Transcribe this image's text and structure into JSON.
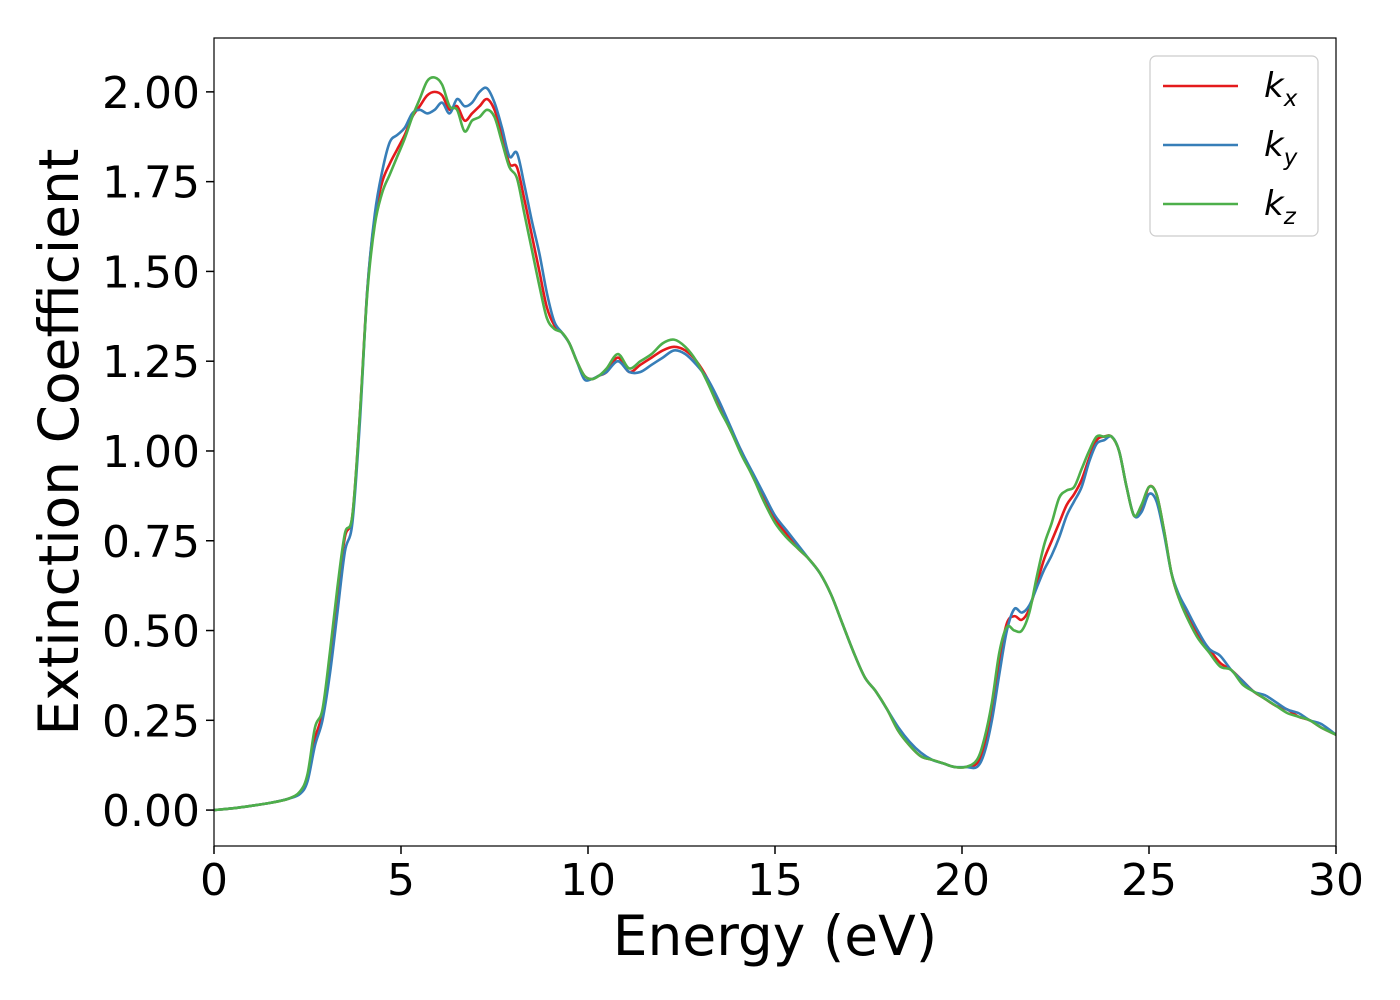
{
  "chart_data": {
    "type": "line",
    "xlabel": "Energy (eV)",
    "ylabel": "Extinction Coefficient",
    "xlim": [
      0,
      30
    ],
    "ylim": [
      -0.1,
      2.15
    ],
    "xticks": [
      0,
      5,
      10,
      15,
      20,
      25,
      30
    ],
    "xtick_labels": [
      "0",
      "5",
      "10",
      "15",
      "20",
      "25",
      "30"
    ],
    "yticks": [
      0.0,
      0.25,
      0.5,
      0.75,
      1.0,
      1.25,
      1.5,
      1.75,
      2.0
    ],
    "ytick_labels": [
      "0.00",
      "0.25",
      "0.50",
      "0.75",
      "1.00",
      "1.25",
      "1.50",
      "1.75",
      "2.00"
    ],
    "grid": false,
    "legend_position": "top-right",
    "series": [
      {
        "name": "k",
        "subscript": "x",
        "color": "#e41a1c",
        "x": [
          0,
          0.5,
          1,
          1.5,
          2,
          2.3,
          2.5,
          2.7,
          2.9,
          3.1,
          3.3,
          3.5,
          3.7,
          3.9,
          4.1,
          4.3,
          4.5,
          4.7,
          4.9,
          5.1,
          5.3,
          5.5,
          5.7,
          5.9,
          6.1,
          6.3,
          6.5,
          6.7,
          6.9,
          7.1,
          7.3,
          7.5,
          7.7,
          7.9,
          8.1,
          8.3,
          8.5,
          8.7,
          8.9,
          9.1,
          9.3,
          9.5,
          9.7,
          9.9,
          10.1,
          10.3,
          10.5,
          10.8,
          11.1,
          11.4,
          11.7,
          12.0,
          12.3,
          12.6,
          12.9,
          13.2,
          13.5,
          13.8,
          14.1,
          14.4,
          14.7,
          15.0,
          15.3,
          15.6,
          15.9,
          16.2,
          16.5,
          16.8,
          17.1,
          17.4,
          17.7,
          18.0,
          18.3,
          18.6,
          18.9,
          19.2,
          19.5,
          19.8,
          20.1,
          20.4,
          20.6,
          20.8,
          21.0,
          21.2,
          21.4,
          21.6,
          21.8,
          22.0,
          22.2,
          22.4,
          22.6,
          22.8,
          23.0,
          23.2,
          23.4,
          23.6,
          23.8,
          24.0,
          24.2,
          24.4,
          24.6,
          24.8,
          25.0,
          25.2,
          25.4,
          25.6,
          25.8,
          26.0,
          26.3,
          26.6,
          26.9,
          27.2,
          27.5,
          27.8,
          28.1,
          28.4,
          28.7,
          29.0,
          29.3,
          29.6,
          30.0
        ],
        "values": [
          0.0,
          0.005,
          0.012,
          0.02,
          0.032,
          0.05,
          0.09,
          0.2,
          0.27,
          0.42,
          0.6,
          0.76,
          0.82,
          1.1,
          1.45,
          1.65,
          1.75,
          1.8,
          1.84,
          1.88,
          1.93,
          1.96,
          1.99,
          2.0,
          1.99,
          1.95,
          1.96,
          1.92,
          1.94,
          1.96,
          1.98,
          1.95,
          1.88,
          1.8,
          1.79,
          1.7,
          1.6,
          1.5,
          1.4,
          1.35,
          1.33,
          1.3,
          1.25,
          1.21,
          1.2,
          1.21,
          1.22,
          1.26,
          1.22,
          1.24,
          1.26,
          1.28,
          1.29,
          1.28,
          1.25,
          1.2,
          1.13,
          1.06,
          1.0,
          0.93,
          0.87,
          0.81,
          0.77,
          0.73,
          0.7,
          0.66,
          0.6,
          0.52,
          0.44,
          0.37,
          0.33,
          0.28,
          0.22,
          0.18,
          0.15,
          0.14,
          0.13,
          0.12,
          0.12,
          0.13,
          0.18,
          0.28,
          0.42,
          0.52,
          0.54,
          0.53,
          0.56,
          0.63,
          0.7,
          0.75,
          0.8,
          0.85,
          0.88,
          0.92,
          0.98,
          1.03,
          1.04,
          1.04,
          1.0,
          0.9,
          0.82,
          0.84,
          0.9,
          0.88,
          0.78,
          0.66,
          0.59,
          0.55,
          0.49,
          0.45,
          0.41,
          0.39,
          0.36,
          0.33,
          0.31,
          0.29,
          0.28,
          0.26,
          0.25,
          0.23,
          0.21
        ]
      },
      {
        "name": "k",
        "subscript": "y",
        "color": "#377eb8",
        "x": [
          0,
          0.5,
          1,
          1.5,
          2,
          2.3,
          2.5,
          2.7,
          2.9,
          3.1,
          3.3,
          3.5,
          3.7,
          3.9,
          4.1,
          4.3,
          4.5,
          4.7,
          4.9,
          5.1,
          5.3,
          5.5,
          5.7,
          5.9,
          6.1,
          6.3,
          6.5,
          6.7,
          6.9,
          7.1,
          7.3,
          7.5,
          7.7,
          7.9,
          8.1,
          8.3,
          8.5,
          8.7,
          8.9,
          9.1,
          9.3,
          9.5,
          9.7,
          9.9,
          10.1,
          10.3,
          10.5,
          10.8,
          11.1,
          11.4,
          11.7,
          12.0,
          12.3,
          12.6,
          12.9,
          13.2,
          13.5,
          13.8,
          14.1,
          14.4,
          14.7,
          15.0,
          15.3,
          15.6,
          15.9,
          16.2,
          16.5,
          16.8,
          17.1,
          17.4,
          17.7,
          18.0,
          18.3,
          18.6,
          18.9,
          19.2,
          19.5,
          19.8,
          20.1,
          20.4,
          20.6,
          20.8,
          21.0,
          21.2,
          21.4,
          21.6,
          21.8,
          22.0,
          22.2,
          22.4,
          22.6,
          22.8,
          23.0,
          23.2,
          23.4,
          23.6,
          23.8,
          24.0,
          24.2,
          24.4,
          24.6,
          24.8,
          25.0,
          25.2,
          25.4,
          25.6,
          25.8,
          26.0,
          26.3,
          26.6,
          26.9,
          27.2,
          27.5,
          27.8,
          28.1,
          28.4,
          28.7,
          29.0,
          29.3,
          29.6,
          30.0
        ],
        "values": [
          0.0,
          0.005,
          0.012,
          0.02,
          0.032,
          0.045,
          0.08,
          0.18,
          0.25,
          0.38,
          0.55,
          0.72,
          0.8,
          1.08,
          1.45,
          1.66,
          1.78,
          1.86,
          1.88,
          1.9,
          1.94,
          1.95,
          1.94,
          1.95,
          1.97,
          1.94,
          1.98,
          1.96,
          1.97,
          2.0,
          2.01,
          1.97,
          1.9,
          1.82,
          1.83,
          1.74,
          1.64,
          1.55,
          1.44,
          1.36,
          1.33,
          1.3,
          1.25,
          1.2,
          1.2,
          1.21,
          1.22,
          1.25,
          1.22,
          1.22,
          1.24,
          1.26,
          1.28,
          1.27,
          1.24,
          1.2,
          1.14,
          1.07,
          1.0,
          0.94,
          0.88,
          0.82,
          0.78,
          0.74,
          0.7,
          0.66,
          0.6,
          0.52,
          0.44,
          0.37,
          0.33,
          0.28,
          0.23,
          0.19,
          0.16,
          0.14,
          0.13,
          0.12,
          0.12,
          0.12,
          0.16,
          0.25,
          0.38,
          0.5,
          0.56,
          0.55,
          0.57,
          0.62,
          0.67,
          0.71,
          0.76,
          0.82,
          0.86,
          0.9,
          0.97,
          1.02,
          1.03,
          1.04,
          1.0,
          0.9,
          0.82,
          0.83,
          0.88,
          0.86,
          0.77,
          0.66,
          0.6,
          0.56,
          0.5,
          0.45,
          0.43,
          0.39,
          0.36,
          0.33,
          0.32,
          0.3,
          0.28,
          0.27,
          0.25,
          0.24,
          0.21
        ]
      },
      {
        "name": "k",
        "subscript": "z",
        "color": "#4daf4a",
        "x": [
          0,
          0.5,
          1,
          1.5,
          2,
          2.3,
          2.5,
          2.7,
          2.9,
          3.1,
          3.3,
          3.5,
          3.7,
          3.9,
          4.1,
          4.3,
          4.5,
          4.7,
          4.9,
          5.1,
          5.3,
          5.5,
          5.7,
          5.9,
          6.1,
          6.3,
          6.5,
          6.7,
          6.9,
          7.1,
          7.3,
          7.5,
          7.7,
          7.9,
          8.1,
          8.3,
          8.5,
          8.7,
          8.9,
          9.1,
          9.3,
          9.5,
          9.7,
          9.9,
          10.1,
          10.3,
          10.5,
          10.8,
          11.1,
          11.4,
          11.7,
          12.0,
          12.3,
          12.6,
          12.9,
          13.2,
          13.5,
          13.8,
          14.1,
          14.4,
          14.7,
          15.0,
          15.3,
          15.6,
          15.9,
          16.2,
          16.5,
          16.8,
          17.1,
          17.4,
          17.7,
          18.0,
          18.3,
          18.6,
          18.9,
          19.2,
          19.5,
          19.8,
          20.1,
          20.4,
          20.6,
          20.8,
          21.0,
          21.2,
          21.4,
          21.6,
          21.8,
          22.0,
          22.2,
          22.4,
          22.6,
          22.8,
          23.0,
          23.2,
          23.4,
          23.6,
          23.8,
          24.0,
          24.2,
          24.4,
          24.6,
          24.8,
          25.0,
          25.2,
          25.4,
          25.6,
          25.8,
          26.0,
          26.3,
          26.6,
          26.9,
          27.2,
          27.5,
          27.8,
          28.1,
          28.4,
          28.7,
          29.0,
          29.3,
          29.6,
          30.0
        ],
        "values": [
          0.0,
          0.005,
          0.012,
          0.02,
          0.032,
          0.052,
          0.1,
          0.23,
          0.28,
          0.44,
          0.62,
          0.77,
          0.82,
          1.1,
          1.44,
          1.63,
          1.72,
          1.77,
          1.82,
          1.87,
          1.93,
          1.98,
          2.03,
          2.04,
          2.02,
          1.96,
          1.95,
          1.89,
          1.92,
          1.93,
          1.95,
          1.93,
          1.86,
          1.79,
          1.76,
          1.66,
          1.56,
          1.46,
          1.37,
          1.34,
          1.33,
          1.3,
          1.25,
          1.21,
          1.2,
          1.21,
          1.23,
          1.27,
          1.23,
          1.25,
          1.27,
          1.3,
          1.31,
          1.29,
          1.25,
          1.19,
          1.12,
          1.06,
          0.99,
          0.93,
          0.86,
          0.8,
          0.76,
          0.73,
          0.7,
          0.66,
          0.6,
          0.52,
          0.44,
          0.37,
          0.33,
          0.28,
          0.22,
          0.18,
          0.15,
          0.14,
          0.13,
          0.12,
          0.12,
          0.14,
          0.2,
          0.3,
          0.44,
          0.51,
          0.5,
          0.5,
          0.55,
          0.65,
          0.74,
          0.8,
          0.87,
          0.89,
          0.9,
          0.95,
          1.0,
          1.04,
          1.04,
          1.04,
          1.0,
          0.9,
          0.82,
          0.85,
          0.9,
          0.88,
          0.78,
          0.66,
          0.59,
          0.54,
          0.48,
          0.44,
          0.4,
          0.39,
          0.35,
          0.33,
          0.31,
          0.29,
          0.27,
          0.26,
          0.25,
          0.23,
          0.21
        ]
      }
    ]
  }
}
